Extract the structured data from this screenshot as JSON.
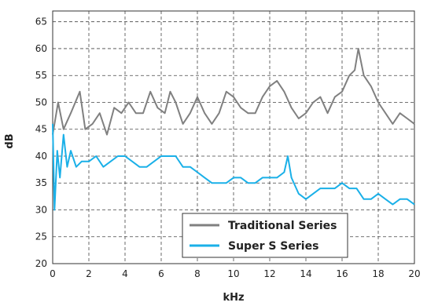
{
  "chart_data": {
    "type": "line",
    "xlabel": "kHz",
    "ylabel": "dB",
    "xlim": [
      0,
      20
    ],
    "ylim": [
      20,
      67
    ],
    "x_ticks": [
      "0",
      "2",
      "4",
      "6",
      "8",
      "10",
      "12",
      "14",
      "16",
      "18",
      "20"
    ],
    "y_ticks": [
      "20",
      "25",
      "30",
      "35",
      "40",
      "45",
      "50",
      "55",
      "60",
      "65"
    ],
    "grid": "dashed",
    "legend_position": "bottom-right",
    "series": [
      {
        "name": "Traditional Series",
        "color": "#808080",
        "points": [
          [
            0.0,
            44
          ],
          [
            0.3,
            50
          ],
          [
            0.6,
            45
          ],
          [
            1.0,
            48
          ],
          [
            1.5,
            52
          ],
          [
            1.8,
            45
          ],
          [
            2.2,
            46
          ],
          [
            2.6,
            48
          ],
          [
            3.0,
            44
          ],
          [
            3.4,
            49
          ],
          [
            3.8,
            48
          ],
          [
            4.2,
            50
          ],
          [
            4.6,
            48
          ],
          [
            5.0,
            48
          ],
          [
            5.4,
            52
          ],
          [
            5.8,
            49
          ],
          [
            6.2,
            48
          ],
          [
            6.5,
            52
          ],
          [
            6.8,
            50
          ],
          [
            7.2,
            46
          ],
          [
            7.6,
            48
          ],
          [
            8.0,
            51
          ],
          [
            8.4,
            48
          ],
          [
            8.8,
            46
          ],
          [
            9.2,
            48
          ],
          [
            9.6,
            52
          ],
          [
            10.0,
            51
          ],
          [
            10.4,
            49
          ],
          [
            10.8,
            48
          ],
          [
            11.2,
            48
          ],
          [
            11.6,
            51
          ],
          [
            12.0,
            53
          ],
          [
            12.4,
            54
          ],
          [
            12.8,
            52
          ],
          [
            13.2,
            49
          ],
          [
            13.6,
            47
          ],
          [
            14.0,
            48
          ],
          [
            14.4,
            50
          ],
          [
            14.8,
            51
          ],
          [
            15.2,
            48
          ],
          [
            15.6,
            51
          ],
          [
            16.0,
            52
          ],
          [
            16.4,
            55
          ],
          [
            16.7,
            56
          ],
          [
            16.9,
            60
          ],
          [
            17.2,
            55
          ],
          [
            17.6,
            53
          ],
          [
            18.0,
            50
          ],
          [
            18.4,
            48
          ],
          [
            18.8,
            46
          ],
          [
            19.2,
            48
          ],
          [
            19.6,
            47
          ],
          [
            20.0,
            46
          ]
        ]
      },
      {
        "name": "Super S Series",
        "color": "#1ab0e8",
        "points": [
          [
            0.0,
            46
          ],
          [
            0.1,
            30
          ],
          [
            0.25,
            41
          ],
          [
            0.4,
            36
          ],
          [
            0.6,
            44
          ],
          [
            0.8,
            38
          ],
          [
            1.0,
            41
          ],
          [
            1.3,
            38
          ],
          [
            1.6,
            39
          ],
          [
            2.0,
            39
          ],
          [
            2.4,
            40
          ],
          [
            2.8,
            38
          ],
          [
            3.2,
            39
          ],
          [
            3.6,
            40
          ],
          [
            4.0,
            40
          ],
          [
            4.4,
            39
          ],
          [
            4.8,
            38
          ],
          [
            5.2,
            38
          ],
          [
            5.6,
            39
          ],
          [
            6.0,
            40
          ],
          [
            6.4,
            40
          ],
          [
            6.8,
            40
          ],
          [
            7.2,
            38
          ],
          [
            7.6,
            38
          ],
          [
            8.0,
            37
          ],
          [
            8.4,
            36
          ],
          [
            8.8,
            35
          ],
          [
            9.2,
            35
          ],
          [
            9.6,
            35
          ],
          [
            10.0,
            36
          ],
          [
            10.4,
            36
          ],
          [
            10.8,
            35
          ],
          [
            11.2,
            35
          ],
          [
            11.6,
            36
          ],
          [
            12.0,
            36
          ],
          [
            12.4,
            36
          ],
          [
            12.8,
            37
          ],
          [
            13.0,
            40
          ],
          [
            13.2,
            36
          ],
          [
            13.6,
            33
          ],
          [
            14.0,
            32
          ],
          [
            14.4,
            33
          ],
          [
            14.8,
            34
          ],
          [
            15.2,
            34
          ],
          [
            15.6,
            34
          ],
          [
            16.0,
            35
          ],
          [
            16.4,
            34
          ],
          [
            16.8,
            34
          ],
          [
            17.2,
            32
          ],
          [
            17.6,
            32
          ],
          [
            18.0,
            33
          ],
          [
            18.4,
            32
          ],
          [
            18.8,
            31
          ],
          [
            19.2,
            32
          ],
          [
            19.6,
            32
          ],
          [
            20.0,
            31
          ]
        ]
      }
    ]
  }
}
